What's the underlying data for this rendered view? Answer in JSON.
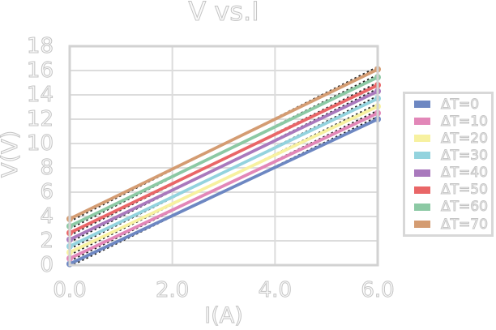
{
  "chart_data": {
    "type": "line",
    "title": "V vs.I",
    "xlabel": "I(A)",
    "ylabel": "V(V)",
    "xlim": [
      0,
      6
    ],
    "ylim": [
      0,
      18
    ],
    "x_ticks": {
      "values": [
        0,
        2,
        4,
        6
      ],
      "labels": [
        "0.0",
        "2.0",
        "4.0",
        "6.0"
      ]
    },
    "y_ticks": {
      "values": [
        0,
        2,
        4,
        6,
        8,
        10,
        12,
        14,
        16,
        18
      ],
      "labels": [
        "0",
        "2",
        "4",
        "6",
        "8",
        "10",
        "12",
        "14",
        "16",
        "18"
      ]
    },
    "grid": true,
    "legend_position": "right-outside",
    "marker": "circle",
    "fit_line": {
      "present": true,
      "color": "#222222",
      "style": "dotted"
    },
    "series": [
      {
        "name": "ΔT=0",
        "color": "#6d87c2",
        "x": [
          0,
          6
        ],
        "y": [
          0.1,
          12.0
        ]
      },
      {
        "name": "ΔT=10",
        "color": "#e287b8",
        "x": [
          0,
          6
        ],
        "y": [
          0.55,
          12.5
        ]
      },
      {
        "name": "ΔT=20",
        "color": "#f7f1a0",
        "x": [
          0,
          6
        ],
        "y": [
          1.05,
          13.05
        ]
      },
      {
        "name": "ΔT=30",
        "color": "#93d3de",
        "x": [
          0,
          6
        ],
        "y": [
          1.55,
          13.7
        ]
      },
      {
        "name": "ΔT=40",
        "color": "#a979bd",
        "x": [
          0,
          6
        ],
        "y": [
          2.1,
          14.3
        ]
      },
      {
        "name": "ΔT=50",
        "color": "#e96667",
        "x": [
          0,
          6
        ],
        "y": [
          2.65,
          14.8
        ]
      },
      {
        "name": "ΔT=60",
        "color": "#8cc9a4",
        "x": [
          0,
          6
        ],
        "y": [
          3.2,
          15.45
        ]
      },
      {
        "name": "ΔT=70",
        "color": "#d49c72",
        "x": [
          0,
          6
        ],
        "y": [
          3.8,
          16.1
        ]
      }
    ]
  },
  "styles": {
    "text_color": "#c9c9c9",
    "grid_color": "#dcdcdc",
    "plot_border_color": "#d2d2d2",
    "legend_border_color": "#d8d8d8",
    "background": "#ffffff"
  }
}
